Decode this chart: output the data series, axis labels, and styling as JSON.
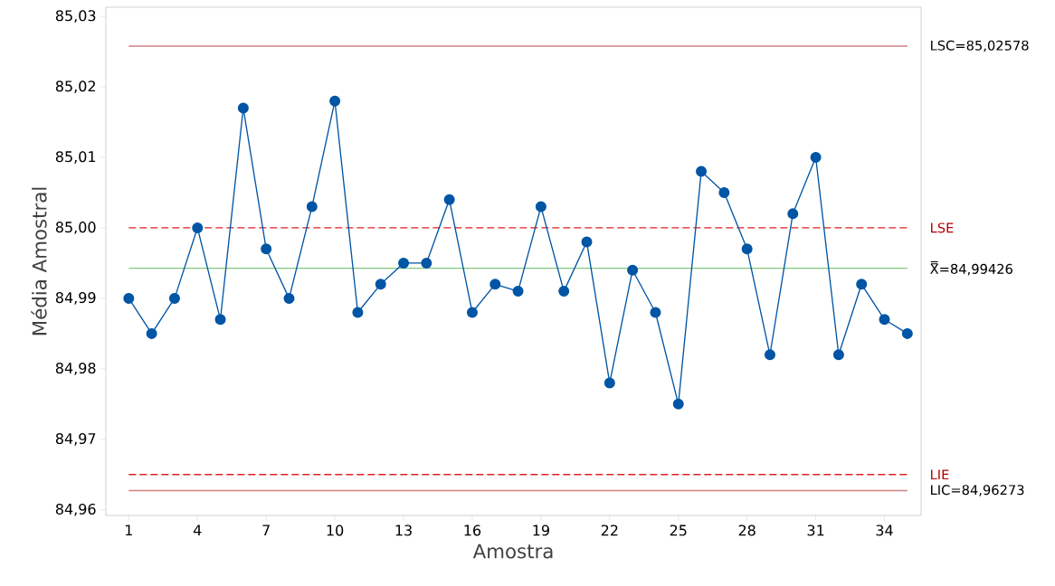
{
  "chart_data": {
    "type": "line",
    "xlabel": "Amostra",
    "ylabel": "Média Amostral",
    "x": [
      1,
      2,
      3,
      4,
      5,
      6,
      7,
      8,
      9,
      10,
      11,
      12,
      13,
      14,
      15,
      16,
      17,
      18,
      19,
      20,
      21,
      22,
      23,
      24,
      25,
      26,
      27,
      28,
      29,
      30,
      31,
      32,
      33,
      34,
      35
    ],
    "series": [
      {
        "color": "#0055a5",
        "values": [
          84.99,
          84.985,
          84.99,
          85.0,
          84.987,
          85.017,
          84.997,
          84.99,
          85.003,
          85.018,
          84.988,
          84.992,
          84.995,
          84.995,
          85.004,
          84.988,
          84.992,
          84.991,
          85.003,
          84.991,
          84.998,
          84.978,
          84.994,
          84.988,
          84.975,
          85.008,
          85.005,
          84.997,
          84.982,
          85.002,
          85.01,
          84.982,
          84.992,
          84.987,
          84.985
        ]
      }
    ],
    "marker": "circle",
    "line_style": "solid",
    "xlim": [
      0,
      35.6
    ],
    "ylim": [
      84.9592,
      85.0313
    ],
    "xticks": [
      1,
      4,
      7,
      10,
      13,
      16,
      19,
      22,
      25,
      28,
      31,
      34
    ],
    "yticks": [
      {
        "value": 84.96,
        "label": "84,96"
      },
      {
        "value": 84.97,
        "label": "84,97"
      },
      {
        "value": 84.98,
        "label": "84,98"
      },
      {
        "value": 84.99,
        "label": "84,99"
      },
      {
        "value": 85.0,
        "label": "85,00"
      },
      {
        "value": 85.01,
        "label": "85,01"
      },
      {
        "value": 85.02,
        "label": "85,02"
      },
      {
        "value": 85.03,
        "label": "85,03"
      }
    ],
    "ref_lines": [
      {
        "axis": "y",
        "value": 85.02578,
        "label": "LSC=85,02578",
        "color": "#d08080",
        "line_style": "solid"
      },
      {
        "axis": "y",
        "value": 85.0,
        "label": "LSE",
        "color": "#e02020",
        "line_style": "dashed"
      },
      {
        "axis": "y",
        "value": 84.99426,
        "label": "X̿=84,99426",
        "color": "#80c880",
        "line_style": "solid"
      },
      {
        "axis": "y",
        "value": 84.965,
        "label": "LIE",
        "color": "#e02020",
        "line_style": "dashed"
      },
      {
        "axis": "y",
        "value": 84.96273,
        "label": "LIC=84,96273",
        "color": "#d08080",
        "line_style": "solid"
      }
    ]
  }
}
